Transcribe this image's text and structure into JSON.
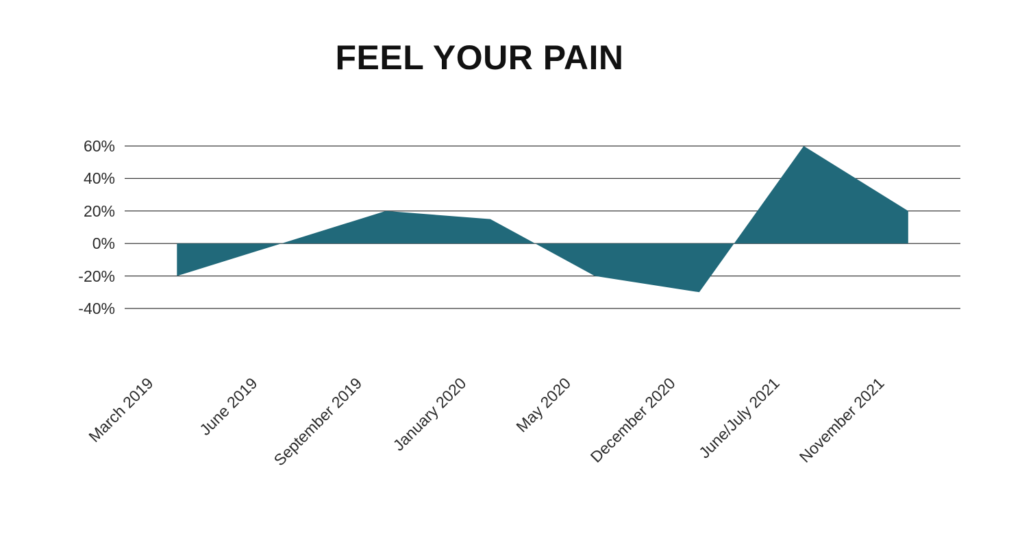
{
  "title": "FEEL YOUR PAIN",
  "chart_data": {
    "type": "area",
    "title": "FEEL YOUR PAIN",
    "categories": [
      "March 2019",
      "June 2019",
      "September 2019",
      "January 2020",
      "May 2020",
      "December 2020",
      "June/July 2021",
      "November 2021"
    ],
    "values": [
      -20,
      0,
      20,
      15,
      -20,
      -30,
      60,
      20
    ],
    "y_ticks": [
      {
        "value": 60,
        "label": "60%"
      },
      {
        "value": 40,
        "label": "40%"
      },
      {
        "value": 20,
        "label": "20%"
      },
      {
        "value": 0,
        "label": "0%"
      },
      {
        "value": -20,
        "label": "-20%"
      },
      {
        "value": -40,
        "label": "-40%"
      }
    ],
    "ylim": [
      -40,
      60
    ],
    "baseline": 0,
    "xlabel": "",
    "ylabel": "",
    "grid": "horizontal",
    "legend": "none",
    "x_label_rotation_deg": -45,
    "colors": {
      "area_fill": "#21697A",
      "gridline": "#3b3b3b",
      "tick_text": "#2b2b2b",
      "title_text": "#111111",
      "background": "#ffffff"
    }
  }
}
